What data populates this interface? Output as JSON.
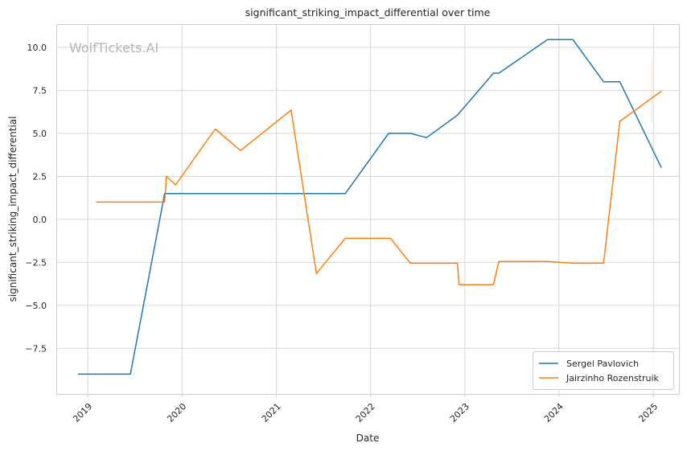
{
  "watermark": "WolfTickets.AI",
  "chart_data": {
    "type": "line",
    "title": "significant_striking_impact_differential over time",
    "xlabel": "Date",
    "ylabel": "significant_striking_impact_differential",
    "x_ticks": [
      "2019",
      "2020",
      "2021",
      "2022",
      "2023",
      "2024",
      "2025"
    ],
    "y_ticks": [
      "10.0",
      "7.5",
      "5.0",
      "2.5",
      "0.0",
      "−2.5",
      "−5.0",
      "−7.5"
    ],
    "y_tick_values": [
      10.0,
      7.5,
      5.0,
      2.5,
      0.0,
      -2.5,
      -5.0,
      -7.5
    ],
    "xlim": [
      "2018-09-01",
      "2025-04-10"
    ],
    "ylim": [
      -10.15,
      11.35
    ],
    "grid": true,
    "legend": "lower-right",
    "series": [
      {
        "name": "Sergei Pavlovich",
        "color": "#1f77b4",
        "points": [
          [
            "2018-11-24",
            -9.0
          ],
          [
            "2019-06-15",
            -9.0
          ],
          [
            "2019-10-26",
            1.5
          ],
          [
            "2021-09-25",
            1.5
          ],
          [
            "2022-03-12",
            5.0
          ],
          [
            "2022-06-04",
            5.0
          ],
          [
            "2022-08-06",
            4.75
          ],
          [
            "2022-12-03",
            6.05
          ],
          [
            "2023-04-22",
            8.5
          ],
          [
            "2023-05-13",
            8.5
          ],
          [
            "2023-11-18",
            10.45
          ],
          [
            "2024-02-24",
            10.45
          ],
          [
            "2024-06-22",
            8.0
          ],
          [
            "2024-08-24",
            8.0
          ],
          [
            "2025-02-01",
            3.0
          ]
        ]
      },
      {
        "name": "Jairzinho Rozenstruik",
        "color": "#ff7f0e",
        "points": [
          [
            "2019-02-02",
            1.0
          ],
          [
            "2019-10-26",
            1.0
          ],
          [
            "2019-11-02",
            2.5
          ],
          [
            "2019-12-07",
            2.0
          ],
          [
            "2020-05-09",
            5.25
          ],
          [
            "2020-08-15",
            4.0
          ],
          [
            "2021-02-27",
            6.35
          ],
          [
            "2021-06-05",
            -3.15
          ],
          [
            "2021-09-25",
            -1.1
          ],
          [
            "2022-03-19",
            -1.1
          ],
          [
            "2022-06-04",
            -2.55
          ],
          [
            "2022-12-03",
            -2.55
          ],
          [
            "2022-12-10",
            -3.8
          ],
          [
            "2023-04-22",
            -3.8
          ],
          [
            "2023-05-13",
            -2.45
          ],
          [
            "2023-11-18",
            -2.45
          ],
          [
            "2024-02-24",
            -2.55
          ],
          [
            "2024-06-22",
            -2.55
          ],
          [
            "2024-08-24",
            5.7
          ],
          [
            "2025-02-01",
            7.45
          ]
        ]
      }
    ]
  }
}
